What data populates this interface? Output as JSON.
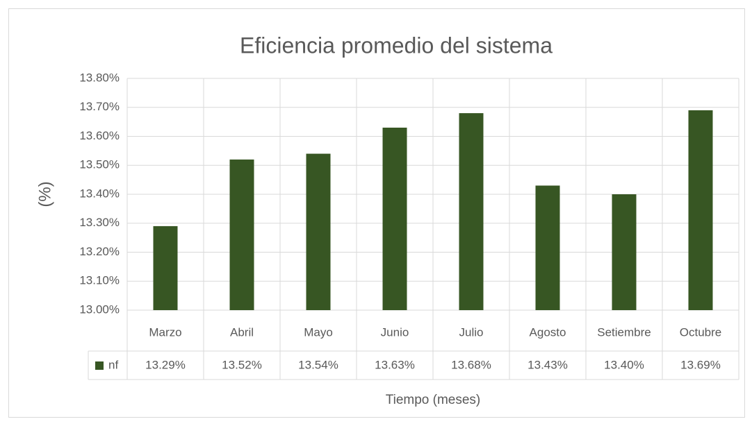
{
  "chart_data": {
    "type": "bar",
    "title": "Eficiencia promedio del sistema",
    "x_label": "Tiempo (meses)",
    "y_label": "(%)",
    "categories": [
      "Marzo",
      "Abril",
      "Mayo",
      "Junio",
      "Julio",
      "Agosto",
      "Setiembre",
      "Octubre"
    ],
    "series": [
      {
        "name": "nf",
        "color": "#375623",
        "values": [
          13.29,
          13.52,
          13.54,
          13.63,
          13.68,
          13.43,
          13.4,
          13.69
        ],
        "value_labels": [
          "13.29%",
          "13.52%",
          "13.54%",
          "13.63%",
          "13.68%",
          "13.43%",
          "13.40%",
          "13.69%"
        ]
      }
    ],
    "ylim": [
      13,
      13.8
    ],
    "yticks": [
      {
        "value": 13.0,
        "label": "13.00%"
      },
      {
        "value": 13.1,
        "label": "13.10%"
      },
      {
        "value": 13.2,
        "label": "13.20%"
      },
      {
        "value": 13.3,
        "label": "13.30%"
      },
      {
        "value": 13.4,
        "label": "13.40%"
      },
      {
        "value": 13.5,
        "label": "13.50%"
      },
      {
        "value": 13.6,
        "label": "13.60%"
      },
      {
        "value": 13.7,
        "label": "13.70%"
      },
      {
        "value": 13.8,
        "label": "13.80%"
      }
    ],
    "grid": true
  }
}
